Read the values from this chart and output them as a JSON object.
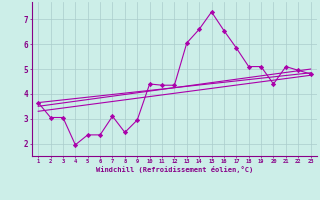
{
  "xlabel": "Windchill (Refroidissement éolien,°C)",
  "x_values": [
    1,
    2,
    3,
    4,
    5,
    6,
    7,
    8,
    9,
    10,
    11,
    12,
    13,
    14,
    15,
    16,
    17,
    18,
    19,
    20,
    21,
    22,
    23
  ],
  "line1": [
    3.65,
    3.05,
    3.05,
    1.95,
    2.35,
    2.35,
    3.1,
    2.45,
    2.95,
    4.4,
    4.35,
    4.35,
    6.05,
    6.6,
    7.3,
    6.55,
    5.85,
    5.1,
    5.1,
    4.4,
    5.1,
    4.95,
    4.8
  ],
  "line2_x": [
    1,
    23
  ],
  "line2_y": [
    3.65,
    4.85
  ],
  "line3_x": [
    1,
    23
  ],
  "line3_y": [
    3.5,
    5.0
  ],
  "line4_x": [
    1,
    23
  ],
  "line4_y": [
    3.3,
    4.75
  ],
  "ylim": [
    1.5,
    7.7
  ],
  "xlim": [
    0.5,
    23.5
  ],
  "yticks": [
    2,
    3,
    4,
    5,
    6,
    7
  ],
  "xticks": [
    1,
    2,
    3,
    4,
    5,
    6,
    7,
    8,
    9,
    10,
    11,
    12,
    13,
    14,
    15,
    16,
    17,
    18,
    19,
    20,
    21,
    22,
    23
  ],
  "line_color": "#aa00aa",
  "bg_color": "#cceee8",
  "grid_color": "#aacccc",
  "marker": "D",
  "marker_size": 2.2,
  "linewidth": 0.8
}
